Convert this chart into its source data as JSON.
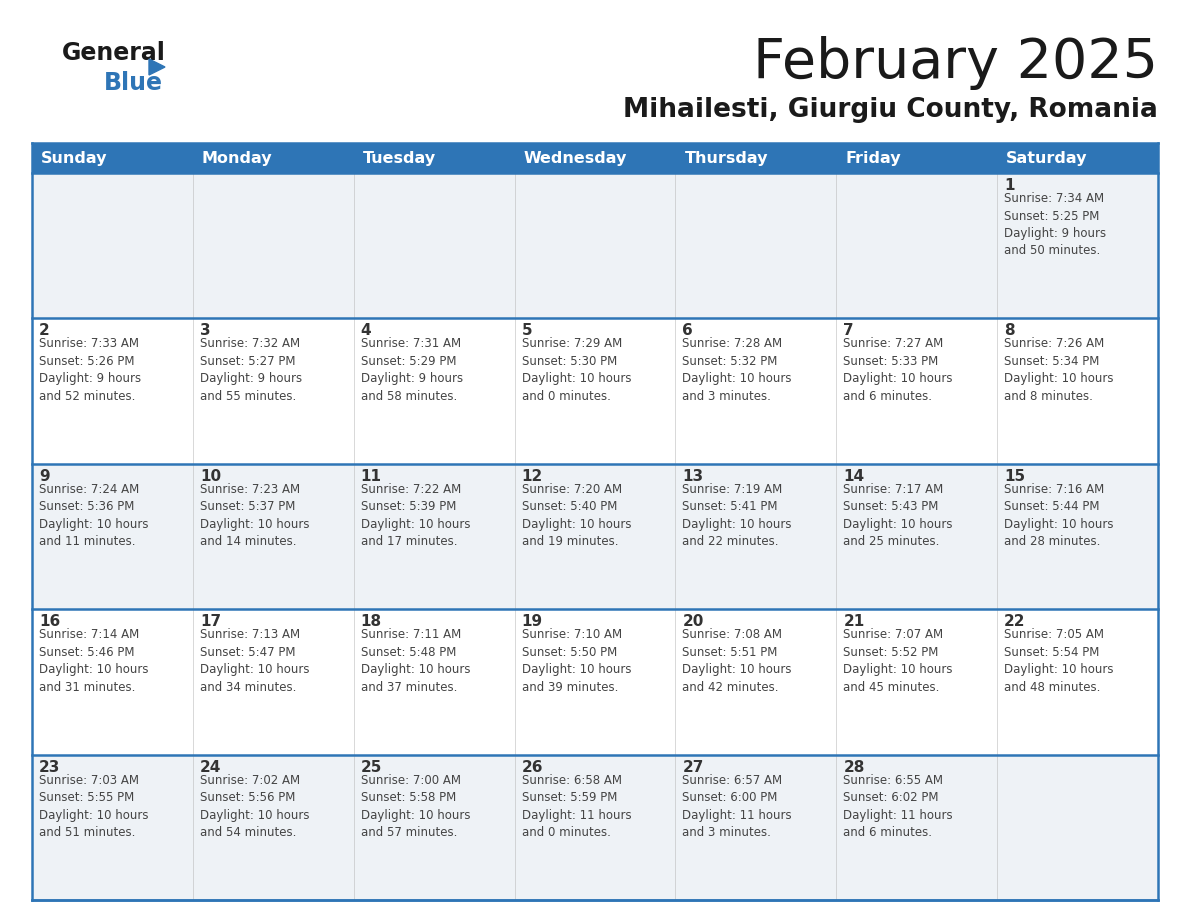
{
  "title": "February 2025",
  "subtitle": "Mihailesti, Giurgiu County, Romania",
  "header_bg": "#2E75B6",
  "header_text_color": "#FFFFFF",
  "days_of_week": [
    "Sunday",
    "Monday",
    "Tuesday",
    "Wednesday",
    "Thursday",
    "Friday",
    "Saturday"
  ],
  "cell_bg_odd": "#F0F4F8",
  "cell_bg_even": "#FFFFFF",
  "cell_border_color": "#2E75B6",
  "day_number_color": "#333333",
  "info_text_color": "#444444",
  "weeks": [
    [
      {
        "day": null,
        "info": ""
      },
      {
        "day": null,
        "info": ""
      },
      {
        "day": null,
        "info": ""
      },
      {
        "day": null,
        "info": ""
      },
      {
        "day": null,
        "info": ""
      },
      {
        "day": null,
        "info": ""
      },
      {
        "day": 1,
        "info": "Sunrise: 7:34 AM\nSunset: 5:25 PM\nDaylight: 9 hours\nand 50 minutes."
      }
    ],
    [
      {
        "day": 2,
        "info": "Sunrise: 7:33 AM\nSunset: 5:26 PM\nDaylight: 9 hours\nand 52 minutes."
      },
      {
        "day": 3,
        "info": "Sunrise: 7:32 AM\nSunset: 5:27 PM\nDaylight: 9 hours\nand 55 minutes."
      },
      {
        "day": 4,
        "info": "Sunrise: 7:31 AM\nSunset: 5:29 PM\nDaylight: 9 hours\nand 58 minutes."
      },
      {
        "day": 5,
        "info": "Sunrise: 7:29 AM\nSunset: 5:30 PM\nDaylight: 10 hours\nand 0 minutes."
      },
      {
        "day": 6,
        "info": "Sunrise: 7:28 AM\nSunset: 5:32 PM\nDaylight: 10 hours\nand 3 minutes."
      },
      {
        "day": 7,
        "info": "Sunrise: 7:27 AM\nSunset: 5:33 PM\nDaylight: 10 hours\nand 6 minutes."
      },
      {
        "day": 8,
        "info": "Sunrise: 7:26 AM\nSunset: 5:34 PM\nDaylight: 10 hours\nand 8 minutes."
      }
    ],
    [
      {
        "day": 9,
        "info": "Sunrise: 7:24 AM\nSunset: 5:36 PM\nDaylight: 10 hours\nand 11 minutes."
      },
      {
        "day": 10,
        "info": "Sunrise: 7:23 AM\nSunset: 5:37 PM\nDaylight: 10 hours\nand 14 minutes."
      },
      {
        "day": 11,
        "info": "Sunrise: 7:22 AM\nSunset: 5:39 PM\nDaylight: 10 hours\nand 17 minutes."
      },
      {
        "day": 12,
        "info": "Sunrise: 7:20 AM\nSunset: 5:40 PM\nDaylight: 10 hours\nand 19 minutes."
      },
      {
        "day": 13,
        "info": "Sunrise: 7:19 AM\nSunset: 5:41 PM\nDaylight: 10 hours\nand 22 minutes."
      },
      {
        "day": 14,
        "info": "Sunrise: 7:17 AM\nSunset: 5:43 PM\nDaylight: 10 hours\nand 25 minutes."
      },
      {
        "day": 15,
        "info": "Sunrise: 7:16 AM\nSunset: 5:44 PM\nDaylight: 10 hours\nand 28 minutes."
      }
    ],
    [
      {
        "day": 16,
        "info": "Sunrise: 7:14 AM\nSunset: 5:46 PM\nDaylight: 10 hours\nand 31 minutes."
      },
      {
        "day": 17,
        "info": "Sunrise: 7:13 AM\nSunset: 5:47 PM\nDaylight: 10 hours\nand 34 minutes."
      },
      {
        "day": 18,
        "info": "Sunrise: 7:11 AM\nSunset: 5:48 PM\nDaylight: 10 hours\nand 37 minutes."
      },
      {
        "day": 19,
        "info": "Sunrise: 7:10 AM\nSunset: 5:50 PM\nDaylight: 10 hours\nand 39 minutes."
      },
      {
        "day": 20,
        "info": "Sunrise: 7:08 AM\nSunset: 5:51 PM\nDaylight: 10 hours\nand 42 minutes."
      },
      {
        "day": 21,
        "info": "Sunrise: 7:07 AM\nSunset: 5:52 PM\nDaylight: 10 hours\nand 45 minutes."
      },
      {
        "day": 22,
        "info": "Sunrise: 7:05 AM\nSunset: 5:54 PM\nDaylight: 10 hours\nand 48 minutes."
      }
    ],
    [
      {
        "day": 23,
        "info": "Sunrise: 7:03 AM\nSunset: 5:55 PM\nDaylight: 10 hours\nand 51 minutes."
      },
      {
        "day": 24,
        "info": "Sunrise: 7:02 AM\nSunset: 5:56 PM\nDaylight: 10 hours\nand 54 minutes."
      },
      {
        "day": 25,
        "info": "Sunrise: 7:00 AM\nSunset: 5:58 PM\nDaylight: 10 hours\nand 57 minutes."
      },
      {
        "day": 26,
        "info": "Sunrise: 6:58 AM\nSunset: 5:59 PM\nDaylight: 11 hours\nand 0 minutes."
      },
      {
        "day": 27,
        "info": "Sunrise: 6:57 AM\nSunset: 6:00 PM\nDaylight: 11 hours\nand 3 minutes."
      },
      {
        "day": 28,
        "info": "Sunrise: 6:55 AM\nSunset: 6:02 PM\nDaylight: 11 hours\nand 6 minutes."
      },
      {
        "day": null,
        "info": ""
      }
    ]
  ],
  "logo_general_color": "#1a1a1a",
  "logo_blue_color": "#2E75B6",
  "logo_triangle_color": "#2E75B6",
  "title_color": "#1a1a1a",
  "subtitle_color": "#1a1a1a"
}
